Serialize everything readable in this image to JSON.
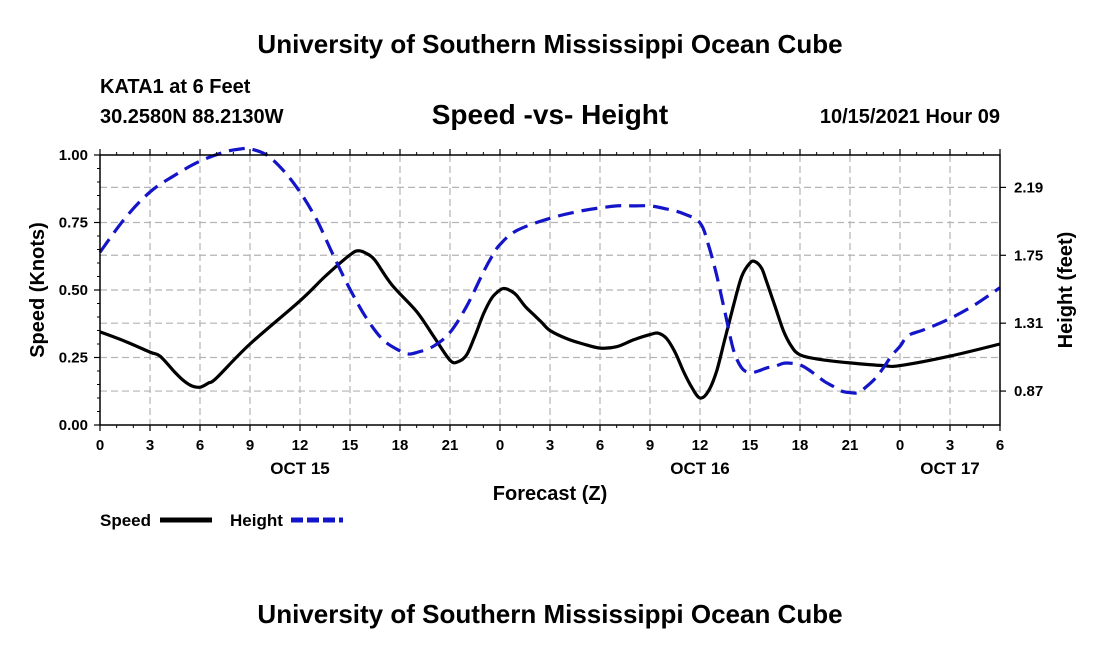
{
  "header": {
    "title": "University of Southern Mississippi Ocean Cube",
    "station": "KATA1 at 6 Feet",
    "coords": "30.2580N  88.2130W",
    "subtitle": "Speed -vs- Height",
    "datetime": "10/15/2021 Hour 09"
  },
  "footer": {
    "title": "University of Southern Mississippi Ocean Cube"
  },
  "chart_data": {
    "type": "line",
    "xlabel": "Forecast (Z)",
    "ylabel_left": "Speed (Knots)",
    "ylabel_right": "Height (feet)",
    "x_range": [
      0,
      54
    ],
    "x_unit": "hours since 10/15 00Z",
    "x_ticks": [
      0,
      3,
      6,
      9,
      12,
      15,
      18,
      21,
      24,
      27,
      30,
      33,
      36,
      39,
      42,
      45,
      48,
      51,
      54
    ],
    "x_tick_labels": [
      "0",
      "3",
      "6",
      "9",
      "12",
      "15",
      "18",
      "21",
      "0",
      "3",
      "6",
      "9",
      "12",
      "15",
      "18",
      "21",
      "0",
      "3",
      "6"
    ],
    "date_labels": [
      {
        "hour": 12,
        "label": "OCT 15"
      },
      {
        "hour": 36,
        "label": "OCT 16"
      },
      {
        "hour": 51,
        "label": "OCT 17"
      }
    ],
    "y_left": {
      "range": [
        0,
        1
      ],
      "ticks": [
        0,
        0.25,
        0.5,
        0.75,
        1.0
      ],
      "tick_labels": [
        "0.00",
        "0.25",
        "0.50",
        "0.75",
        "1.00"
      ]
    },
    "y_right": {
      "range": [
        0.65,
        2.4
      ],
      "ticks": [
        0.87,
        1.31,
        1.75,
        2.19
      ],
      "tick_labels": [
        "0.87",
        "1.31",
        "1.75",
        "2.19"
      ]
    },
    "grid": true,
    "series": [
      {
        "name": "Speed",
        "axis": "left",
        "color": "#000000",
        "style": "solid",
        "points": [
          [
            0,
            0.345
          ],
          [
            1.5,
            0.31
          ],
          [
            3,
            0.27
          ],
          [
            3.6,
            0.255
          ],
          [
            4.5,
            0.195
          ],
          [
            5,
            0.165
          ],
          [
            5.5,
            0.145
          ],
          [
            6,
            0.14
          ],
          [
            6.5,
            0.155
          ],
          [
            7,
            0.175
          ],
          [
            9,
            0.3
          ],
          [
            12,
            0.46
          ],
          [
            13.5,
            0.55
          ],
          [
            15,
            0.63
          ],
          [
            15.5,
            0.645
          ],
          [
            16,
            0.635
          ],
          [
            16.5,
            0.61
          ],
          [
            17.5,
            0.52
          ],
          [
            19,
            0.42
          ],
          [
            20,
            0.33
          ],
          [
            21,
            0.24
          ],
          [
            21.5,
            0.235
          ],
          [
            22,
            0.26
          ],
          [
            22.5,
            0.33
          ],
          [
            23,
            0.41
          ],
          [
            23.5,
            0.47
          ],
          [
            24,
            0.5
          ],
          [
            24.3,
            0.505
          ],
          [
            24.7,
            0.495
          ],
          [
            25,
            0.48
          ],
          [
            25.5,
            0.44
          ],
          [
            26,
            0.41
          ],
          [
            26.5,
            0.38
          ],
          [
            27,
            0.35
          ],
          [
            28,
            0.32
          ],
          [
            29,
            0.3
          ],
          [
            30,
            0.285
          ],
          [
            31,
            0.29
          ],
          [
            32,
            0.315
          ],
          [
            33,
            0.335
          ],
          [
            33.5,
            0.34
          ],
          [
            34,
            0.32
          ],
          [
            34.5,
            0.27
          ],
          [
            35,
            0.2
          ],
          [
            35.5,
            0.14
          ],
          [
            36,
            0.1
          ],
          [
            36.5,
            0.125
          ],
          [
            37,
            0.2
          ],
          [
            37.5,
            0.32
          ],
          [
            38,
            0.44
          ],
          [
            38.5,
            0.55
          ],
          [
            39,
            0.6
          ],
          [
            39.3,
            0.605
          ],
          [
            39.7,
            0.58
          ],
          [
            40,
            0.53
          ],
          [
            40.5,
            0.44
          ],
          [
            41,
            0.35
          ],
          [
            41.5,
            0.29
          ],
          [
            42,
            0.26
          ],
          [
            43,
            0.245
          ],
          [
            45,
            0.23
          ],
          [
            47,
            0.22
          ],
          [
            48,
            0.22
          ],
          [
            51,
            0.255
          ],
          [
            54,
            0.3
          ]
        ]
      },
      {
        "name": "Height",
        "axis": "right",
        "color": "#1414c8",
        "style": "dashed",
        "points": [
          [
            0,
            1.77
          ],
          [
            1.5,
            1.99
          ],
          [
            3,
            2.16
          ],
          [
            4.5,
            2.27
          ],
          [
            6,
            2.36
          ],
          [
            7.5,
            2.42
          ],
          [
            8.5,
            2.44
          ],
          [
            9,
            2.44
          ],
          [
            10,
            2.4
          ],
          [
            11,
            2.3
          ],
          [
            12,
            2.16
          ],
          [
            13,
            1.98
          ],
          [
            14,
            1.75
          ],
          [
            15,
            1.53
          ],
          [
            16,
            1.34
          ],
          [
            17,
            1.2
          ],
          [
            18,
            1.13
          ],
          [
            18.5,
            1.11
          ],
          [
            19,
            1.12
          ],
          [
            20,
            1.16
          ],
          [
            21,
            1.25
          ],
          [
            22,
            1.42
          ],
          [
            23,
            1.64
          ],
          [
            23.5,
            1.74
          ],
          [
            24,
            1.82
          ],
          [
            25,
            1.91
          ],
          [
            27,
            1.99
          ],
          [
            29,
            2.04
          ],
          [
            31,
            2.07
          ],
          [
            32,
            2.07
          ],
          [
            33,
            2.07
          ],
          [
            34,
            2.05
          ],
          [
            35,
            2.02
          ],
          [
            36,
            1.96
          ],
          [
            36.5,
            1.82
          ],
          [
            37,
            1.62
          ],
          [
            37.5,
            1.38
          ],
          [
            38,
            1.14
          ],
          [
            38.5,
            1.02
          ],
          [
            39,
            0.99
          ],
          [
            39.5,
            1.0
          ],
          [
            40,
            1.02
          ],
          [
            40.5,
            1.03
          ],
          [
            41,
            1.05
          ],
          [
            41.5,
            1.05
          ],
          [
            42,
            1.04
          ],
          [
            42.5,
            1.01
          ],
          [
            43,
            0.97
          ],
          [
            43.5,
            0.93
          ],
          [
            44,
            0.9
          ],
          [
            44.5,
            0.87
          ],
          [
            45,
            0.86
          ],
          [
            45.5,
            0.86
          ],
          [
            46,
            0.9
          ],
          [
            46.5,
            0.95
          ],
          [
            47,
            1.02
          ],
          [
            47.5,
            1.1
          ],
          [
            48,
            1.16
          ],
          [
            48.5,
            1.23
          ],
          [
            49.5,
            1.27
          ],
          [
            51,
            1.34
          ],
          [
            52.5,
            1.43
          ],
          [
            54,
            1.54
          ]
        ]
      }
    ]
  }
}
